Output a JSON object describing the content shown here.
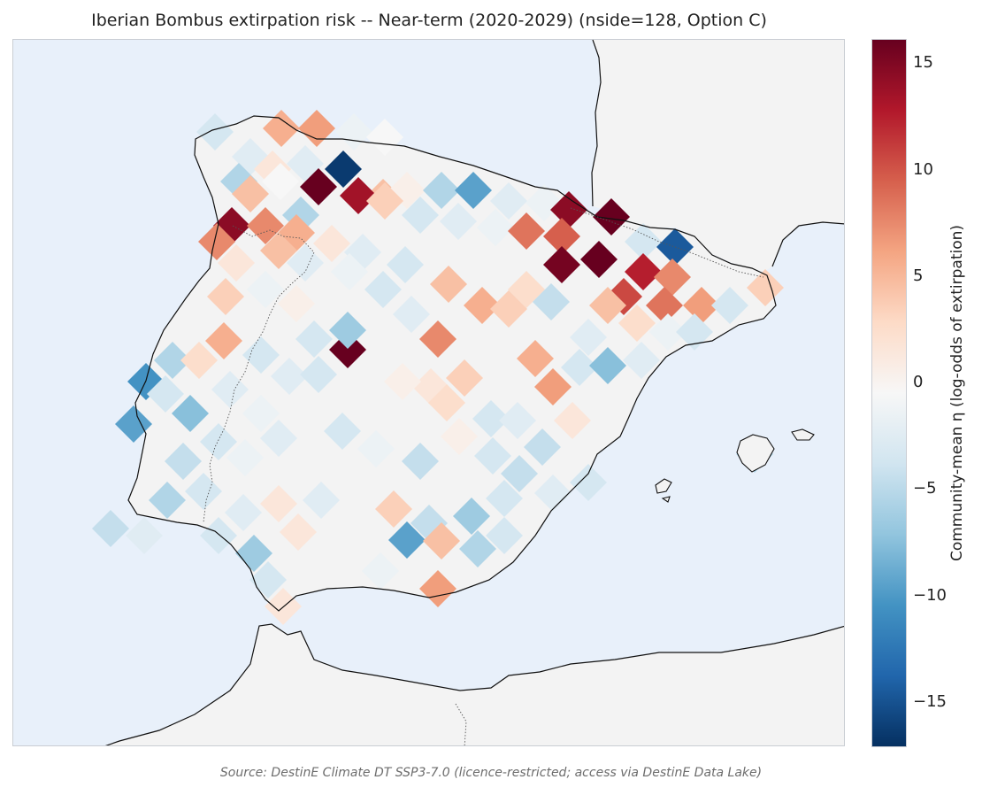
{
  "title": "Iberian Bombus extirpation risk -- Near-term (2020-2029) (nside=128, Option C)",
  "colorbar": {
    "label": "Community-mean η (log-odds of extirpation)",
    "ticks": [
      "15",
      "10",
      "5",
      "0",
      "−5",
      "−10",
      "−15"
    ],
    "vmin": -16.6,
    "vmax": 16.6,
    "colormap": "RdBu_r",
    "stops": [
      "#67001f",
      "#b2182b",
      "#d6604d",
      "#f4a582",
      "#fddbc7",
      "#f7f7f7",
      "#d1e5f0",
      "#92c5de",
      "#4393c3",
      "#2166ac",
      "#053061"
    ]
  },
  "source": "Source: DestinE Climate DT SSP3-7.0 (licence-restricted; access via DestinE Data Lake)",
  "colors": {
    "ocean": "#e8f0fa",
    "land": "#f3f3f3",
    "coast": "#111111",
    "border": "#555555"
  },
  "cells": [
    {
      "id": "a1",
      "v": -3
    },
    {
      "id": "a2",
      "v": -2
    },
    {
      "id": "a3",
      "v": 6
    },
    {
      "id": "a4",
      "v": 7
    },
    {
      "id": "a5",
      "v": -1
    },
    {
      "id": "a6",
      "v": 0
    },
    {
      "id": "b1",
      "v": -5
    },
    {
      "id": "b2",
      "v": 2
    },
    {
      "id": "b3",
      "v": -2
    },
    {
      "id": "b4",
      "v": -16
    },
    {
      "id": "b5",
      "v": 5
    },
    {
      "id": "b6",
      "v": 1
    },
    {
      "id": "b7",
      "v": -5
    },
    {
      "id": "b8",
      "v": -9
    },
    {
      "id": "b9",
      "v": -2
    },
    {
      "id": "b10",
      "v": -1
    },
    {
      "id": "b11",
      "v": 15
    },
    {
      "id": "b12",
      "v": 17
    },
    {
      "id": "c1",
      "v": 5
    },
    {
      "id": "c2",
      "v": 0
    },
    {
      "id": "c3",
      "v": 17
    },
    {
      "id": "c4",
      "v": 14
    },
    {
      "id": "c5",
      "v": 4
    },
    {
      "id": "c6",
      "v": -3
    },
    {
      "id": "c7",
      "v": -2
    },
    {
      "id": "c8",
      "v": -1
    },
    {
      "id": "c9",
      "v": 9
    },
    {
      "id": "c10",
      "v": 10
    },
    {
      "id": "c11",
      "v": -3
    },
    {
      "id": "c12",
      "v": -14
    },
    {
      "id": "d1",
      "v": 15
    },
    {
      "id": "d2",
      "v": 8
    },
    {
      "id": "d3",
      "v": -5
    },
    {
      "id": "d4",
      "v": 6
    },
    {
      "id": "d5",
      "v": 2
    },
    {
      "id": "d6",
      "v": -2
    },
    {
      "id": "d7",
      "v": -3
    },
    {
      "id": "d8",
      "v": 5
    },
    {
      "id": "d9",
      "v": 17
    },
    {
      "id": "d10",
      "v": 13
    },
    {
      "id": "d11",
      "v": 8
    },
    {
      "id": "e1",
      "v": 8
    },
    {
      "id": "e2",
      "v": 2
    },
    {
      "id": "e3",
      "v": 5
    },
    {
      "id": "e4",
      "v": -2
    },
    {
      "id": "e5",
      "v": -1
    },
    {
      "id": "e6",
      "v": -3
    },
    {
      "id": "e7",
      "v": 6
    },
    {
      "id": "e8",
      "v": 3
    },
    {
      "id": "e9",
      "v": -4
    },
    {
      "id": "e10",
      "v": 16
    },
    {
      "id": "e11",
      "v": 11
    },
    {
      "id": "e12",
      "v": 9
    },
    {
      "id": "e13",
      "v": 7
    },
    {
      "id": "e14",
      "v": -3
    },
    {
      "id": "e15",
      "v": 4
    },
    {
      "id": "f1",
      "v": 4
    },
    {
      "id": "f2",
      "v": -1
    },
    {
      "id": "f3",
      "v": 1
    },
    {
      "id": "f4",
      "v": -3
    },
    {
      "id": "f5",
      "v": 17
    },
    {
      "id": "f6",
      "v": -6
    },
    {
      "id": "f7",
      "v": -2
    },
    {
      "id": "f8",
      "v": 8
    },
    {
      "id": "f9",
      "v": 4
    },
    {
      "id": "f10",
      "v": 6
    },
    {
      "id": "f11",
      "v": -2
    },
    {
      "id": "f12",
      "v": 5
    },
    {
      "id": "f13",
      "v": 3
    },
    {
      "id": "f14",
      "v": -1
    },
    {
      "id": "f15",
      "v": -3
    },
    {
      "id": "g1",
      "v": -10
    },
    {
      "id": "g2",
      "v": -5
    },
    {
      "id": "g3",
      "v": 6
    },
    {
      "id": "g4",
      "v": 3
    },
    {
      "id": "g5",
      "v": -3
    },
    {
      "id": "g6",
      "v": -2
    },
    {
      "id": "g7",
      "v": -3
    },
    {
      "id": "g8",
      "v": 2
    },
    {
      "id": "g9",
      "v": 4
    },
    {
      "id": "g10",
      "v": 7
    },
    {
      "id": "g11",
      "v": -3
    },
    {
      "id": "g12",
      "v": -7
    },
    {
      "id": "g13",
      "v": -2
    },
    {
      "id": "h1",
      "v": -9
    },
    {
      "id": "h2",
      "v": -7
    },
    {
      "id": "h3",
      "v": -3
    },
    {
      "id": "h4",
      "v": -2
    },
    {
      "id": "h5",
      "v": -1
    },
    {
      "id": "h6",
      "v": 1
    },
    {
      "id": "h7",
      "v": 3
    },
    {
      "id": "h8",
      "v": -3
    },
    {
      "id": "h9",
      "v": -2
    },
    {
      "id": "h10",
      "v": 2
    },
    {
      "id": "h11",
      "v": -4
    },
    {
      "id": "i1",
      "v": -4
    },
    {
      "id": "i2",
      "v": -3
    },
    {
      "id": "i3",
      "v": -1
    },
    {
      "id": "i4",
      "v": -2
    },
    {
      "id": "i5",
      "v": -3
    },
    {
      "id": "i6",
      "v": -1
    },
    {
      "id": "i7",
      "v": -4
    },
    {
      "id": "i8",
      "v": 1
    },
    {
      "id": "i9",
      "v": -3
    },
    {
      "id": "i10",
      "v": -4
    },
    {
      "id": "i11",
      "v": -3
    },
    {
      "id": "j1",
      "v": -5
    },
    {
      "id": "j2",
      "v": -3
    },
    {
      "id": "j3",
      "v": -2
    },
    {
      "id": "j4",
      "v": 2
    },
    {
      "id": "j5",
      "v": -2
    },
    {
      "id": "j6",
      "v": 4
    },
    {
      "id": "j7",
      "v": -4
    },
    {
      "id": "j8",
      "v": -6
    },
    {
      "id": "j9",
      "v": -3
    },
    {
      "id": "j10",
      "v": -2
    },
    {
      "id": "k1",
      "v": -4
    },
    {
      "id": "k2",
      "v": -2
    },
    {
      "id": "k3",
      "v": -3
    },
    {
      "id": "k4",
      "v": -6
    },
    {
      "id": "k5",
      "v": 2
    },
    {
      "id": "k6",
      "v": -9
    },
    {
      "id": "k7",
      "v": 5
    },
    {
      "id": "k8",
      "v": -5
    },
    {
      "id": "k9",
      "v": -3
    },
    {
      "id": "k10",
      "v": 7
    },
    {
      "id": "k11",
      "v": 2
    },
    {
      "id": "k12",
      "v": -1
    },
    {
      "id": "l1",
      "v": -5
    },
    {
      "id": "l2",
      "v": -3
    }
  ]
}
